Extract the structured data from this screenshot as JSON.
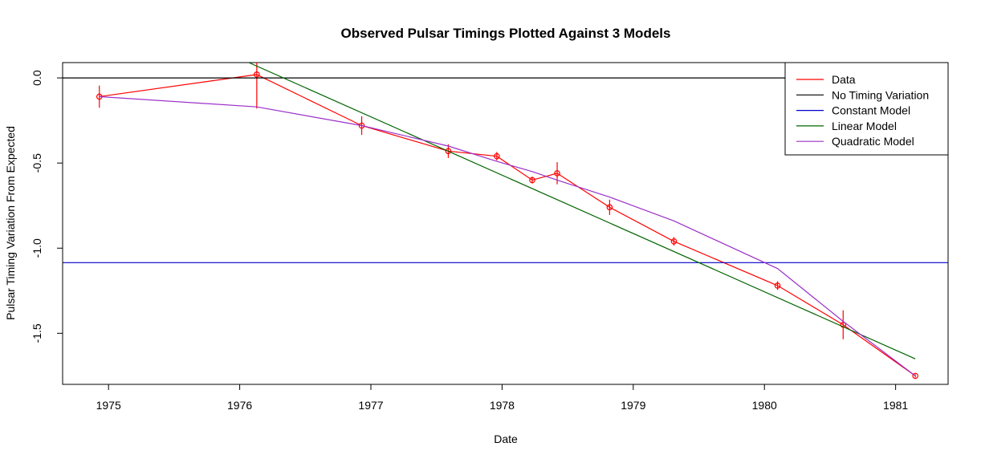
{
  "chart_data": {
    "type": "line",
    "title": "Observed Pulsar Timings Plotted Against 3 Models",
    "xlabel": "Date",
    "ylabel": "Pulsar Timing Variation From Expected",
    "xlim": [
      1974.65,
      1981.4
    ],
    "ylim": [
      -1.8,
      0.09
    ],
    "x_ticks": [
      1975,
      1976,
      1977,
      1978,
      1979,
      1980,
      1981
    ],
    "x_tick_labels": [
      "1975",
      "1976",
      "1977",
      "1978",
      "1979",
      "1980",
      "1981"
    ],
    "y_ticks": [
      0.0,
      -0.5,
      -1.0,
      -1.5
    ],
    "y_tick_labels": [
      "0.0",
      "-0.5",
      "-1.0",
      "-1.5"
    ],
    "legend_position": "top-right",
    "grid": false,
    "series": [
      {
        "name": "Data",
        "color": "#ff0000",
        "kind": "data",
        "x": [
          1974.93,
          1976.13,
          1976.93,
          1977.59,
          1977.96,
          1978.23,
          1978.42,
          1978.82,
          1979.31,
          1980.1,
          1980.6,
          1981.15
        ],
        "y": [
          -0.11,
          0.02,
          -0.28,
          -0.43,
          -0.46,
          -0.6,
          -0.56,
          -0.76,
          -0.96,
          -1.22,
          -1.45,
          -1.75
        ],
        "err": [
          0.065,
          0.2,
          0.055,
          0.04,
          0.025,
          0.02,
          0.065,
          0.045,
          0.025,
          0.025,
          0.085,
          0.01
        ]
      },
      {
        "name": "No Timing Variation",
        "color": "#000000",
        "kind": "hline",
        "y": 0
      },
      {
        "name": "Constant Model",
        "color": "#0000cc",
        "kind": "hline",
        "y": -1.085
      },
      {
        "name": "Linear Model",
        "color": "#006400",
        "kind": "line",
        "x": [
          1976.07,
          1981.15
        ],
        "y": [
          0.09,
          -1.65
        ]
      },
      {
        "name": "Quadratic Model",
        "color": "#9b30c8",
        "kind": "line",
        "x": [
          1974.93,
          1976.13,
          1976.93,
          1977.59,
          1977.96,
          1978.23,
          1978.42,
          1978.82,
          1979.31,
          1980.1,
          1980.6,
          1981.15
        ],
        "y": [
          -0.11,
          -0.17,
          -0.28,
          -0.4,
          -0.49,
          -0.55,
          -0.6,
          -0.7,
          -0.84,
          -1.12,
          -1.43,
          -1.75
        ]
      }
    ]
  }
}
